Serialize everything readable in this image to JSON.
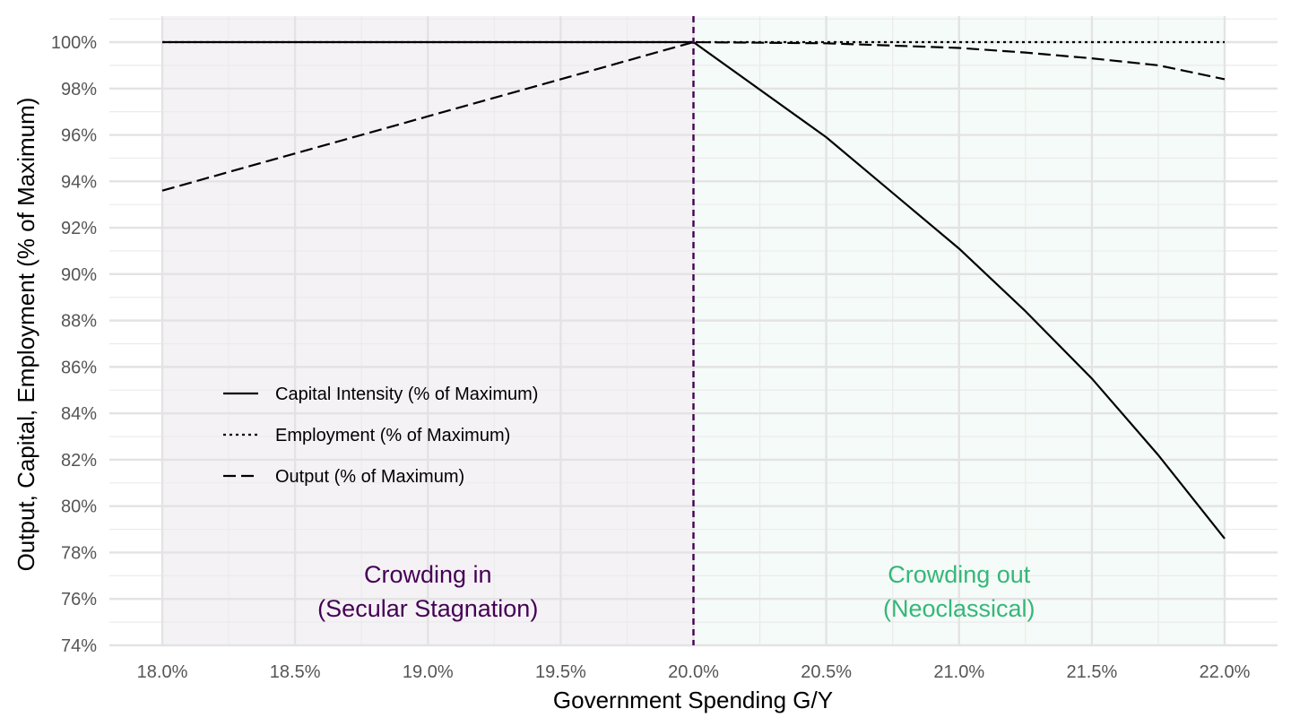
{
  "chart_data": {
    "type": "line",
    "title": "",
    "xlabel": "Government Spending G/Y",
    "ylabel": "Output, Capital, Employment (% of Maximum)",
    "xlim": [
      0.18,
      0.22
    ],
    "ylim": [
      74,
      100
    ],
    "x_ticks": [
      0.18,
      0.185,
      0.19,
      0.195,
      0.2,
      0.205,
      0.21,
      0.215,
      0.22
    ],
    "x_tick_labels": [
      "18.0%",
      "18.5%",
      "19.0%",
      "19.5%",
      "20.0%",
      "20.5%",
      "21.0%",
      "21.5%",
      "22.0%"
    ],
    "y_ticks": [
      74,
      76,
      78,
      80,
      82,
      84,
      86,
      88,
      90,
      92,
      94,
      96,
      98,
      100
    ],
    "y_tick_labels": [
      "74%",
      "76%",
      "78%",
      "80%",
      "82%",
      "84%",
      "86%",
      "88%",
      "90%",
      "92%",
      "94%",
      "96%",
      "98%",
      "100%"
    ],
    "grid": true,
    "legend_position": "left-middle",
    "vline": {
      "x": 0.2,
      "color": "#440154",
      "style": "dashed"
    },
    "regions": [
      {
        "x_start": 0.18,
        "x_end": 0.2,
        "fill": "#440154",
        "opacity": 0.05,
        "label_lines": [
          "Crowding in",
          "(Secular Stagnation)"
        ],
        "label_color": "#440154",
        "label_y": 76.7
      },
      {
        "x_start": 0.2,
        "x_end": 0.22,
        "fill": "#35b779",
        "opacity": 0.05,
        "label_lines": [
          "Crowding out",
          "(Neoclassical)"
        ],
        "label_color": "#35b779",
        "label_y": 76.7
      }
    ],
    "series": [
      {
        "name": "Capital Intensity (% of Maximum)",
        "style": "solid",
        "x": [
          0.18,
          0.19,
          0.2,
          0.205,
          0.21,
          0.2125,
          0.215,
          0.2175,
          0.22
        ],
        "y": [
          100,
          100,
          100,
          95.9,
          91.1,
          88.4,
          85.5,
          82.2,
          78.6
        ]
      },
      {
        "name": "Employment (% of Maximum)",
        "style": "dotted",
        "x": [
          0.18,
          0.19,
          0.2,
          0.21,
          0.22
        ],
        "y": [
          100,
          100,
          100,
          100,
          100
        ]
      },
      {
        "name": "Output (% of Maximum)",
        "style": "dashed",
        "x": [
          0.18,
          0.19,
          0.2,
          0.205,
          0.21,
          0.2125,
          0.215,
          0.2175,
          0.22
        ],
        "y": [
          93.6,
          96.8,
          100,
          99.95,
          99.75,
          99.55,
          99.3,
          99.0,
          98.4
        ]
      }
    ]
  }
}
